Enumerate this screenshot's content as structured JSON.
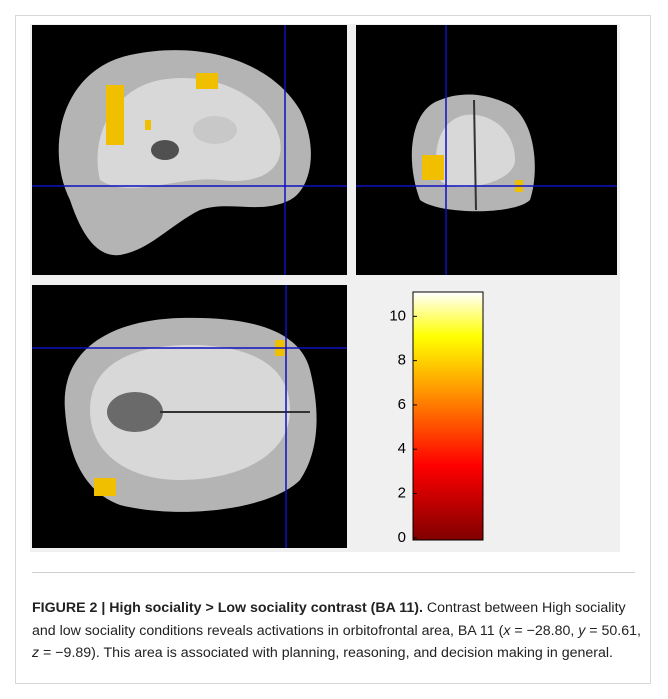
{
  "colorbar": {
    "ylim": [
      -0.1,
      11.1
    ],
    "yticks": [
      0,
      2,
      4,
      6,
      8,
      10
    ]
  },
  "caption": {
    "title": "FIGURE 2 | High sociality > Low sociality contrast (BA 11).",
    "body": [
      "Contrast between High sociality and low sociality conditions reveals activations in orbitofrontal area, BA 11 (",
      "x",
      " = −28.80, ",
      "y",
      " = 50.61, ",
      "z",
      " = −9.89). This area is associated with planning, reasoning, and decision making in general."
    ]
  }
}
